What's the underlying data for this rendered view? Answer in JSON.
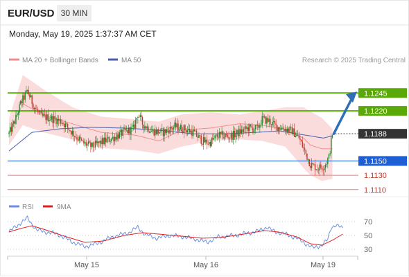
{
  "header": {
    "symbol": "EUR/USD",
    "timeframe": "30 MIN",
    "datetime": "Monday, May 19, 2025 1:37:37 AM CET"
  },
  "legend": {
    "ma20_label": "MA 20 + Bollinger Bands",
    "ma50_label": "MA 50",
    "credit": "Research © 2025 Trading Central",
    "rsi_label": "RSI",
    "rsi_ma_label": "9MA"
  },
  "colors": {
    "bull_candle": "#1f8a2c",
    "bear_candle": "#c0392b",
    "bollinger_fill": "#f9d6d6",
    "ma20": "#f08c8c",
    "ma50": "#4a5fa8",
    "resistance": "#5aa80a",
    "pivot": "#1f5fd6",
    "support": "#f07a7a",
    "forecast_arrow": "#2f6db8",
    "last_price_box": "#333333",
    "rsi": "#6b8fe0",
    "rsi_ma": "#e02020"
  },
  "chart_data": [
    {
      "type": "candlestick",
      "title": "EUR/USD",
      "timeframe": "30 MIN",
      "ylim": [
        1.1103,
        1.1283
      ],
      "x_tick_labels": [
        "May 15",
        "May 16",
        "May 19"
      ],
      "levels": [
        {
          "value": 1.1245,
          "label": "1.1245",
          "kind": "resistance"
        },
        {
          "value": 1.122,
          "label": "1.1220",
          "kind": "resistance"
        },
        {
          "value": 1.115,
          "label": "1.1150",
          "kind": "pivot"
        },
        {
          "value": 1.113,
          "label": "1.1130",
          "kind": "support"
        },
        {
          "value": 1.111,
          "label": "1.1110",
          "kind": "support"
        }
      ],
      "last_price": {
        "value": 1.1188,
        "label": "1.1188"
      },
      "forecast_target": 1.1245,
      "series": [
        {
          "name": "MA 20 + Bollinger Bands",
          "anchors": [
            [
              0,
              1.119
            ],
            [
              12,
              1.123
            ],
            [
              30,
              1.1214
            ],
            [
              55,
              1.1202
            ],
            [
              80,
              1.119
            ],
            [
              110,
              1.1186
            ],
            [
              130,
              1.1178
            ],
            [
              150,
              1.1193
            ],
            [
              175,
              1.1196
            ],
            [
              200,
              1.1202
            ],
            [
              220,
              1.12
            ],
            [
              240,
              1.1194
            ],
            [
              256,
              1.1182
            ],
            [
              262,
              1.1172
            ],
            [
              272,
              1.1167
            ],
            [
              281,
              1.1167
            ]
          ]
        },
        {
          "name": "Bollinger Upper",
          "anchors": [
            [
              0,
              1.121
            ],
            [
              12,
              1.127
            ],
            [
              30,
              1.125
            ],
            [
              55,
              1.1225
            ],
            [
              80,
              1.1212
            ],
            [
              110,
              1.1208
            ],
            [
              130,
              1.1205
            ],
            [
              150,
              1.1215
            ],
            [
              175,
              1.1218
            ],
            [
              200,
              1.1215
            ],
            [
              220,
              1.122
            ],
            [
              240,
              1.1225
            ],
            [
              256,
              1.1225
            ],
            [
              272,
              1.121
            ],
            [
              281,
              1.1195
            ]
          ]
        },
        {
          "name": "Bollinger Lower",
          "anchors": [
            [
              0,
              1.1172
            ],
            [
              12,
              1.12
            ],
            [
              30,
              1.119
            ],
            [
              55,
              1.118
            ],
            [
              80,
              1.1168
            ],
            [
              110,
              1.1165
            ],
            [
              130,
              1.116
            ],
            [
              150,
              1.117
            ],
            [
              175,
              1.1178
            ],
            [
              200,
              1.118
            ],
            [
              220,
              1.1178
            ],
            [
              240,
              1.117
            ],
            [
              256,
              1.114
            ],
            [
              262,
              1.113
            ],
            [
              272,
              1.1122
            ],
            [
              281,
              1.1125
            ]
          ]
        },
        {
          "name": "MA 50",
          "anchors": [
            [
              0,
              1.1164
            ],
            [
              20,
              1.119
            ],
            [
              45,
              1.1195
            ],
            [
              70,
              1.1197
            ],
            [
              100,
              1.1196
            ],
            [
              130,
              1.1193
            ],
            [
              160,
              1.1188
            ],
            [
              190,
              1.1188
            ],
            [
              215,
              1.119
            ],
            [
              235,
              1.1192
            ],
            [
              250,
              1.1188
            ],
            [
              262,
              1.1185
            ],
            [
              273,
              1.1182
            ],
            [
              281,
              1.1185
            ]
          ]
        },
        {
          "name": "Price path",
          "anchors": [
            [
              0,
              1.1188
            ],
            [
              5,
              1.1205
            ],
            [
              10,
              1.123
            ],
            [
              16,
              1.1248
            ],
            [
              22,
              1.1225
            ],
            [
              28,
              1.1212
            ],
            [
              36,
              1.121
            ],
            [
              46,
              1.1205
            ],
            [
              56,
              1.1188
            ],
            [
              64,
              1.1175
            ],
            [
              72,
              1.117
            ],
            [
              80,
              1.1176
            ],
            [
              90,
              1.1182
            ],
            [
              100,
              1.119
            ],
            [
              108,
              1.1195
            ],
            [
              112,
              1.1216
            ],
            [
              116,
              1.1202
            ],
            [
              124,
              1.1192
            ],
            [
              134,
              1.119
            ],
            [
              144,
              1.1198
            ],
            [
              152,
              1.1195
            ],
            [
              160,
              1.119
            ],
            [
              168,
              1.1178
            ],
            [
              174,
              1.1175
            ],
            [
              182,
              1.1186
            ],
            [
              192,
              1.1184
            ],
            [
              200,
              1.119
            ],
            [
              208,
              1.1196
            ],
            [
              216,
              1.1195
            ],
            [
              220,
              1.1208
            ],
            [
              226,
              1.1206
            ],
            [
              232,
              1.1198
            ],
            [
              240,
              1.1195
            ],
            [
              246,
              1.1192
            ],
            [
              252,
              1.1182
            ],
            [
              258,
              1.116
            ],
            [
              262,
              1.1145
            ],
            [
              268,
              1.114
            ],
            [
              274,
              1.1143
            ],
            [
              278,
              1.1155
            ],
            [
              281,
              1.1188
            ]
          ]
        }
      ]
    },
    {
      "type": "line",
      "title": "RSI",
      "ylim": [
        20,
        80
      ],
      "y_tick_labels": [
        "70",
        "50",
        "30"
      ],
      "series": [
        {
          "name": "RSI",
          "anchors": [
            [
              0,
              55
            ],
            [
              10,
              68
            ],
            [
              16,
              75
            ],
            [
              24,
              58
            ],
            [
              32,
              55
            ],
            [
              42,
              52
            ],
            [
              56,
              40
            ],
            [
              66,
              34
            ],
            [
              76,
              38
            ],
            [
              90,
              48
            ],
            [
              104,
              54
            ],
            [
              112,
              62
            ],
            [
              118,
              52
            ],
            [
              128,
              46
            ],
            [
              140,
              50
            ],
            [
              152,
              48
            ],
            [
              164,
              44
            ],
            [
              172,
              40
            ],
            [
              182,
              48
            ],
            [
              196,
              50
            ],
            [
              206,
              53
            ],
            [
              216,
              56
            ],
            [
              224,
              62
            ],
            [
              230,
              56
            ],
            [
              240,
              52
            ],
            [
              250,
              46
            ],
            [
              258,
              38
            ],
            [
              264,
              32
            ],
            [
              272,
              36
            ],
            [
              277,
              44
            ],
            [
              280,
              62
            ],
            [
              284,
              65
            ],
            [
              290,
              60
            ]
          ]
        },
        {
          "name": "9MA",
          "anchors": [
            [
              0,
              55
            ],
            [
              10,
              60
            ],
            [
              20,
              64
            ],
            [
              32,
              58
            ],
            [
              50,
              48
            ],
            [
              66,
              40
            ],
            [
              82,
              42
            ],
            [
              100,
              50
            ],
            [
              116,
              54
            ],
            [
              130,
              52
            ],
            [
              150,
              49
            ],
            [
              168,
              46
            ],
            [
              184,
              47
            ],
            [
              204,
              52
            ],
            [
              222,
              57
            ],
            [
              234,
              55
            ],
            [
              250,
              48
            ],
            [
              262,
              38
            ],
            [
              272,
              36
            ],
            [
              282,
              44
            ],
            [
              290,
              52
            ]
          ]
        }
      ]
    }
  ]
}
